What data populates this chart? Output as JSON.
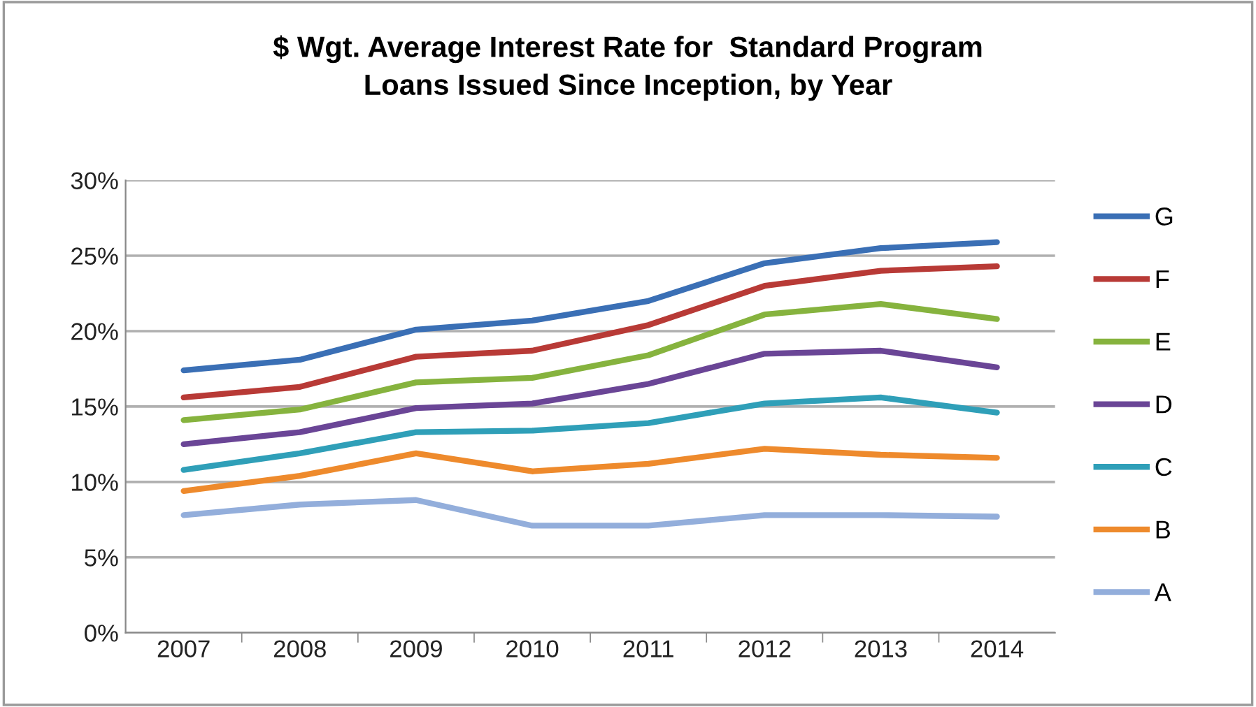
{
  "chart_data": {
    "type": "line",
    "title": "$ Wgt. Average Interest Rate for  Standard Program\nLoans Issued Since Inception, by Year",
    "categories": [
      "2007",
      "2008",
      "2009",
      "2010",
      "2011",
      "2012",
      "2013",
      "2014"
    ],
    "series": [
      {
        "name": "G",
        "color": "#3a6fb5",
        "values": [
          17.4,
          18.1,
          20.1,
          20.7,
          22.0,
          24.5,
          25.5,
          25.9
        ]
      },
      {
        "name": "F",
        "color": "#b83a36",
        "values": [
          15.6,
          16.3,
          18.3,
          18.7,
          20.4,
          23.0,
          24.0,
          24.3
        ]
      },
      {
        "name": "E",
        "color": "#86b33e",
        "values": [
          14.1,
          14.8,
          16.6,
          16.9,
          18.4,
          21.1,
          21.8,
          20.8
        ]
      },
      {
        "name": "D",
        "color": "#6a4596",
        "values": [
          12.5,
          13.3,
          14.9,
          15.2,
          16.5,
          18.5,
          18.7,
          17.6
        ]
      },
      {
        "name": "C",
        "color": "#2f9fb8",
        "values": [
          10.8,
          11.9,
          13.3,
          13.4,
          13.9,
          15.2,
          15.6,
          14.6
        ]
      },
      {
        "name": "B",
        "color": "#ee8a2c",
        "values": [
          9.4,
          10.4,
          11.9,
          10.7,
          11.2,
          12.2,
          11.8,
          11.6
        ]
      },
      {
        "name": "A",
        "color": "#93aedb",
        "values": [
          7.8,
          8.5,
          8.8,
          7.1,
          7.1,
          7.8,
          7.8,
          7.7
        ]
      }
    ],
    "ylim": [
      0,
      30
    ],
    "yticks": [
      {
        "value": 0,
        "label": "0%"
      },
      {
        "value": 5,
        "label": "5%"
      },
      {
        "value": 10,
        "label": "10%"
      },
      {
        "value": 15,
        "label": "15%"
      },
      {
        "value": 20,
        "label": "20%"
      },
      {
        "value": 25,
        "label": "25%"
      },
      {
        "value": 30,
        "label": "30%"
      }
    ],
    "grid": "y",
    "legend": "right",
    "marker": "none",
    "line_style": "solid"
  }
}
